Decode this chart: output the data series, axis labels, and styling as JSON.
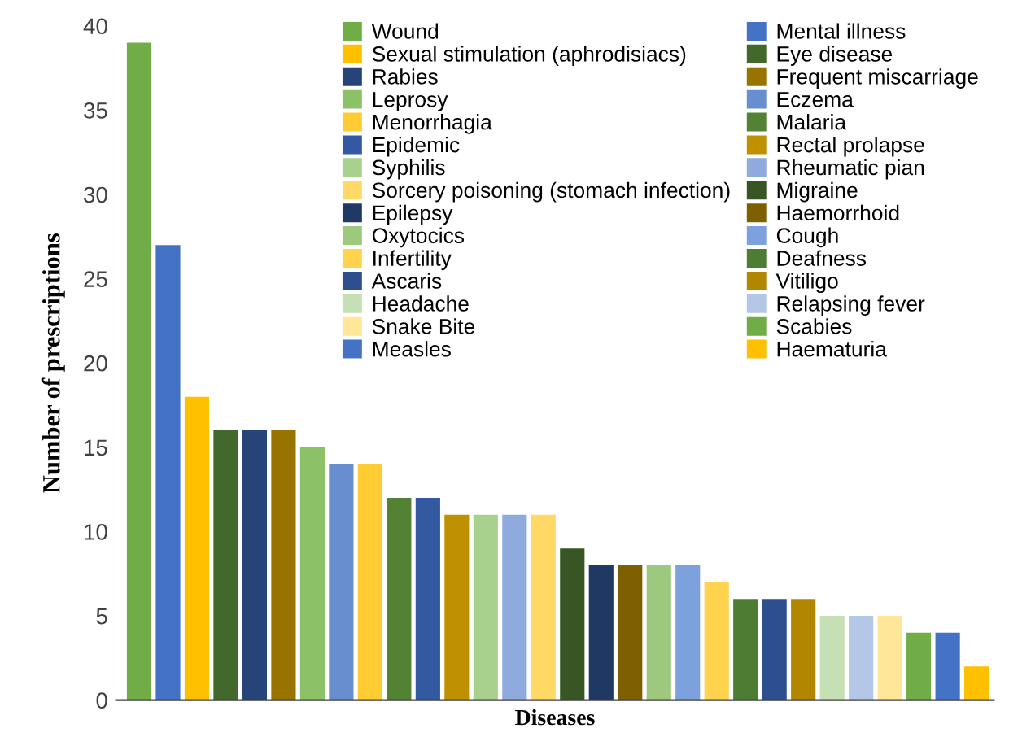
{
  "chart_data": {
    "type": "bar",
    "xlabel": "Diseases",
    "ylabel": "Number of prescriptions",
    "categories": [
      null,
      null,
      null,
      null,
      null,
      null,
      null,
      null,
      null,
      null,
      null,
      null,
      null,
      null,
      null,
      null,
      null,
      null,
      null,
      null,
      null,
      null,
      null,
      null,
      null,
      null,
      null,
      null,
      null,
      null
    ],
    "series": [
      {
        "name": "Wound",
        "color": "#70ad47",
        "values": [
          39,
          null,
          null,
          null,
          null,
          null,
          null,
          null,
          null,
          null,
          null,
          null,
          null,
          null,
          null,
          null,
          null,
          null,
          null,
          null,
          null,
          null,
          null,
          null,
          null,
          null,
          null,
          null,
          null,
          null
        ]
      },
      {
        "name": "Mental illness",
        "color": "#4472c4",
        "values": [
          null,
          27,
          null,
          null,
          null,
          null,
          null,
          null,
          null,
          null,
          null,
          null,
          null,
          null,
          null,
          null,
          null,
          null,
          null,
          null,
          null,
          null,
          null,
          null,
          null,
          null,
          null,
          null,
          null,
          null
        ]
      },
      {
        "name": "Sexual stimulation (aphrodisiacs)",
        "color": "#ffc000",
        "values": [
          null,
          null,
          18,
          null,
          null,
          null,
          null,
          null,
          null,
          null,
          null,
          null,
          null,
          null,
          null,
          null,
          null,
          null,
          null,
          null,
          null,
          null,
          null,
          null,
          null,
          null,
          null,
          null,
          null,
          null
        ]
      },
      {
        "name": "Eye disease",
        "color": "#43682b",
        "values": [
          null,
          null,
          null,
          16,
          null,
          null,
          null,
          null,
          null,
          null,
          null,
          null,
          null,
          null,
          null,
          null,
          null,
          null,
          null,
          null,
          null,
          null,
          null,
          null,
          null,
          null,
          null,
          null,
          null,
          null
        ]
      },
      {
        "name": "Rabies",
        "color": "#264478",
        "values": [
          null,
          null,
          null,
          null,
          16,
          null,
          null,
          null,
          null,
          null,
          null,
          null,
          null,
          null,
          null,
          null,
          null,
          null,
          null,
          null,
          null,
          null,
          null,
          null,
          null,
          null,
          null,
          null,
          null,
          null
        ]
      },
      {
        "name": "Frequent miscarriage",
        "color": "#997300",
        "values": [
          null,
          null,
          null,
          null,
          null,
          16,
          null,
          null,
          null,
          null,
          null,
          null,
          null,
          null,
          null,
          null,
          null,
          null,
          null,
          null,
          null,
          null,
          null,
          null,
          null,
          null,
          null,
          null,
          null,
          null
        ]
      },
      {
        "name": "Leprosy",
        "color": "#8cc168",
        "values": [
          null,
          null,
          null,
          null,
          null,
          null,
          15,
          null,
          null,
          null,
          null,
          null,
          null,
          null,
          null,
          null,
          null,
          null,
          null,
          null,
          null,
          null,
          null,
          null,
          null,
          null,
          null,
          null,
          null,
          null
        ]
      },
      {
        "name": "Eczema",
        "color": "#698ed0",
        "values": [
          null,
          null,
          null,
          null,
          null,
          null,
          null,
          14,
          null,
          null,
          null,
          null,
          null,
          null,
          null,
          null,
          null,
          null,
          null,
          null,
          null,
          null,
          null,
          null,
          null,
          null,
          null,
          null,
          null,
          null
        ]
      },
      {
        "name": "Menorrhagia",
        "color": "#ffcd33",
        "values": [
          null,
          null,
          null,
          null,
          null,
          null,
          null,
          null,
          14,
          null,
          null,
          null,
          null,
          null,
          null,
          null,
          null,
          null,
          null,
          null,
          null,
          null,
          null,
          null,
          null,
          null,
          null,
          null,
          null,
          null
        ]
      },
      {
        "name": "Malaria",
        "color": "#548235",
        "values": [
          null,
          null,
          null,
          null,
          null,
          null,
          null,
          null,
          null,
          12,
          null,
          null,
          null,
          null,
          null,
          null,
          null,
          null,
          null,
          null,
          null,
          null,
          null,
          null,
          null,
          null,
          null,
          null,
          null,
          null
        ]
      },
      {
        "name": "Epidemic",
        "color": "#335aa1",
        "values": [
          null,
          null,
          null,
          null,
          null,
          null,
          null,
          null,
          null,
          null,
          12,
          null,
          null,
          null,
          null,
          null,
          null,
          null,
          null,
          null,
          null,
          null,
          null,
          null,
          null,
          null,
          null,
          null,
          null,
          null
        ]
      },
      {
        "name": "Rectal prolapse",
        "color": "#bf9000",
        "values": [
          null,
          null,
          null,
          null,
          null,
          null,
          null,
          null,
          null,
          null,
          null,
          11,
          null,
          null,
          null,
          null,
          null,
          null,
          null,
          null,
          null,
          null,
          null,
          null,
          null,
          null,
          null,
          null,
          null,
          null
        ]
      },
      {
        "name": "Syphilis",
        "color": "#a9d18e",
        "values": [
          null,
          null,
          null,
          null,
          null,
          null,
          null,
          null,
          null,
          null,
          null,
          null,
          11,
          null,
          null,
          null,
          null,
          null,
          null,
          null,
          null,
          null,
          null,
          null,
          null,
          null,
          null,
          null,
          null,
          null
        ]
      },
      {
        "name": "Rheumatic pian",
        "color": "#8faadc",
        "values": [
          null,
          null,
          null,
          null,
          null,
          null,
          null,
          null,
          null,
          null,
          null,
          null,
          null,
          11,
          null,
          null,
          null,
          null,
          null,
          null,
          null,
          null,
          null,
          null,
          null,
          null,
          null,
          null,
          null,
          null
        ]
      },
      {
        "name": "Sorcery poisoning (stomach infection)",
        "color": "#ffd966",
        "values": [
          null,
          null,
          null,
          null,
          null,
          null,
          null,
          null,
          null,
          null,
          null,
          null,
          null,
          null,
          11,
          null,
          null,
          null,
          null,
          null,
          null,
          null,
          null,
          null,
          null,
          null,
          null,
          null,
          null,
          null
        ]
      },
      {
        "name": "Migraine",
        "color": "#375623",
        "values": [
          null,
          null,
          null,
          null,
          null,
          null,
          null,
          null,
          null,
          null,
          null,
          null,
          null,
          null,
          null,
          9,
          null,
          null,
          null,
          null,
          null,
          null,
          null,
          null,
          null,
          null,
          null,
          null,
          null,
          null
        ]
      },
      {
        "name": "Epilepsy",
        "color": "#203864",
        "values": [
          null,
          null,
          null,
          null,
          null,
          null,
          null,
          null,
          null,
          null,
          null,
          null,
          null,
          null,
          null,
          null,
          8,
          null,
          null,
          null,
          null,
          null,
          null,
          null,
          null,
          null,
          null,
          null,
          null,
          null
        ]
      },
      {
        "name": "Haemorrhoid",
        "color": "#7f6000",
        "values": [
          null,
          null,
          null,
          null,
          null,
          null,
          null,
          null,
          null,
          null,
          null,
          null,
          null,
          null,
          null,
          null,
          null,
          8,
          null,
          null,
          null,
          null,
          null,
          null,
          null,
          null,
          null,
          null,
          null,
          null
        ]
      },
      {
        "name": "Oxytocics",
        "color": "#9dc97f",
        "values": [
          null,
          null,
          null,
          null,
          null,
          null,
          null,
          null,
          null,
          null,
          null,
          null,
          null,
          null,
          null,
          null,
          null,
          null,
          8,
          null,
          null,
          null,
          null,
          null,
          null,
          null,
          null,
          null,
          null,
          null
        ]
      },
      {
        "name": "Cough",
        "color": "#7da1dc",
        "values": [
          null,
          null,
          null,
          null,
          null,
          null,
          null,
          null,
          null,
          null,
          null,
          null,
          null,
          null,
          null,
          null,
          null,
          null,
          null,
          8,
          null,
          null,
          null,
          null,
          null,
          null,
          null,
          null,
          null,
          null
        ]
      },
      {
        "name": "Infertility",
        "color": "#ffd34d",
        "values": [
          null,
          null,
          null,
          null,
          null,
          null,
          null,
          null,
          null,
          null,
          null,
          null,
          null,
          null,
          null,
          null,
          null,
          null,
          null,
          null,
          7,
          null,
          null,
          null,
          null,
          null,
          null,
          null,
          null,
          null
        ]
      },
      {
        "name": "Deafness",
        "color": "#4d7d32",
        "values": [
          null,
          null,
          null,
          null,
          null,
          null,
          null,
          null,
          null,
          null,
          null,
          null,
          null,
          null,
          null,
          null,
          null,
          null,
          null,
          null,
          null,
          6,
          null,
          null,
          null,
          null,
          null,
          null,
          null,
          null
        ]
      },
      {
        "name": "Ascaris",
        "color": "#2e4f8e",
        "values": [
          null,
          null,
          null,
          null,
          null,
          null,
          null,
          null,
          null,
          null,
          null,
          null,
          null,
          null,
          null,
          null,
          null,
          null,
          null,
          null,
          null,
          null,
          6,
          null,
          null,
          null,
          null,
          null,
          null,
          null
        ]
      },
      {
        "name": "Vitiligo",
        "color": "#b38600",
        "values": [
          null,
          null,
          null,
          null,
          null,
          null,
          null,
          null,
          null,
          null,
          null,
          null,
          null,
          null,
          null,
          null,
          null,
          null,
          null,
          null,
          null,
          null,
          null,
          6,
          null,
          null,
          null,
          null,
          null,
          null
        ]
      },
      {
        "name": "Headache",
        "color": "#c5e0b4",
        "values": [
          null,
          null,
          null,
          null,
          null,
          null,
          null,
          null,
          null,
          null,
          null,
          null,
          null,
          null,
          null,
          null,
          null,
          null,
          null,
          null,
          null,
          null,
          null,
          null,
          5,
          null,
          null,
          null,
          null,
          null
        ]
      },
      {
        "name": "Relapsing fever",
        "color": "#b4c7e7",
        "values": [
          null,
          null,
          null,
          null,
          null,
          null,
          null,
          null,
          null,
          null,
          null,
          null,
          null,
          null,
          null,
          null,
          null,
          null,
          null,
          null,
          null,
          null,
          null,
          null,
          null,
          5,
          null,
          null,
          null,
          null
        ]
      },
      {
        "name": "Snake Bite",
        "color": "#ffe699",
        "values": [
          null,
          null,
          null,
          null,
          null,
          null,
          null,
          null,
          null,
          null,
          null,
          null,
          null,
          null,
          null,
          null,
          null,
          null,
          null,
          null,
          null,
          null,
          null,
          null,
          null,
          null,
          5,
          null,
          null,
          null
        ]
      },
      {
        "name": "Scabies",
        "color": "#70ad47",
        "values": [
          null,
          null,
          null,
          null,
          null,
          null,
          null,
          null,
          null,
          null,
          null,
          null,
          null,
          null,
          null,
          null,
          null,
          null,
          null,
          null,
          null,
          null,
          null,
          null,
          null,
          null,
          null,
          4,
          null,
          null
        ]
      },
      {
        "name": "Measles",
        "color": "#4472c4",
        "values": [
          null,
          null,
          null,
          null,
          null,
          null,
          null,
          null,
          null,
          null,
          null,
          null,
          null,
          null,
          null,
          null,
          null,
          null,
          null,
          null,
          null,
          null,
          null,
          null,
          null,
          null,
          null,
          null,
          4,
          null
        ]
      },
      {
        "name": "Haematuria",
        "color": "#ffc000",
        "values": [
          null,
          null,
          null,
          null,
          null,
          null,
          null,
          null,
          null,
          null,
          null,
          null,
          null,
          null,
          null,
          null,
          null,
          null,
          null,
          null,
          null,
          null,
          null,
          null,
          null,
          null,
          null,
          null,
          null,
          2
        ]
      }
    ],
    "ylim": [
      0,
      40
    ],
    "yticks": [
      0,
      5,
      10,
      15,
      20,
      25,
      30,
      35,
      40
    ],
    "tick_labels": "y",
    "legend": "top right"
  }
}
